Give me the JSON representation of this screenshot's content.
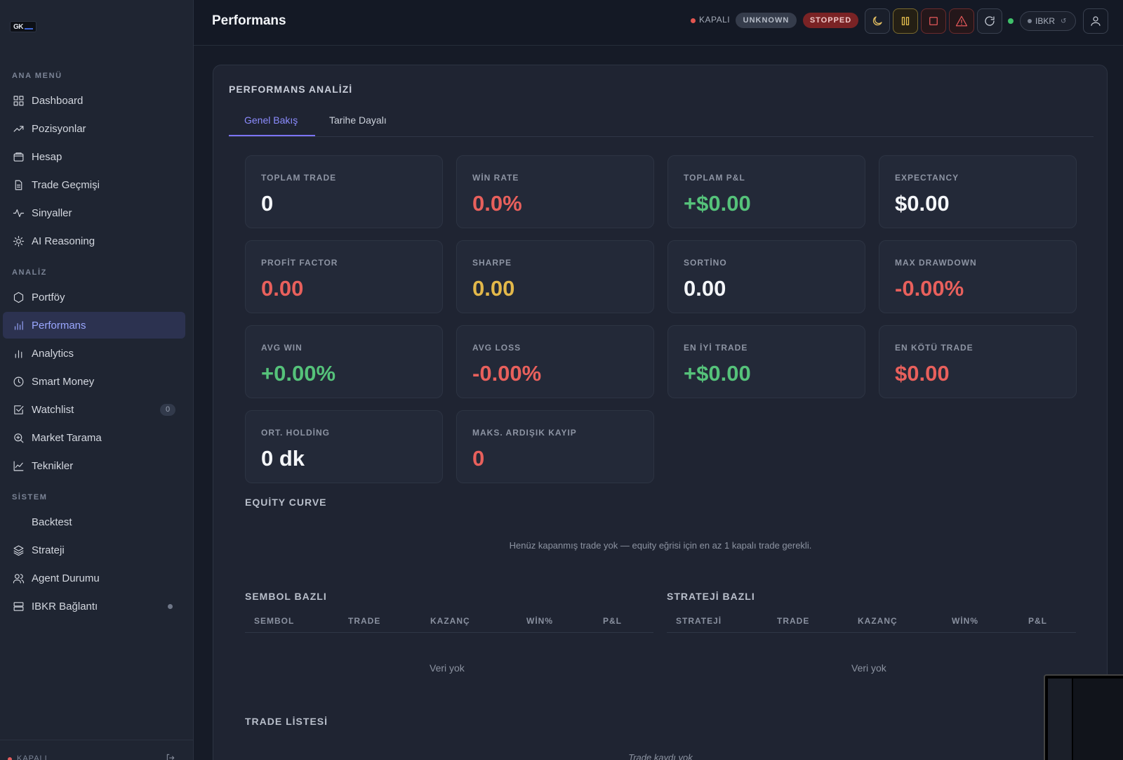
{
  "logo": {
    "text": "GK"
  },
  "sidebar": {
    "sections": {
      "main": "ANA MENÜ",
      "analysis": "ANALİZ",
      "system": "SİSTEM"
    },
    "items": [
      {
        "label": "Dashboard",
        "icon": "grid-icon"
      },
      {
        "label": "Pozisyonlar",
        "icon": "trending-up-icon"
      },
      {
        "label": "Hesap",
        "icon": "wallet-icon"
      },
      {
        "label": "Trade Geçmişi",
        "icon": "document-icon"
      },
      {
        "label": "Sinyaller",
        "icon": "activity-icon"
      },
      {
        "label": "AI Reasoning",
        "icon": "sun-icon"
      },
      {
        "label": "Portföy",
        "icon": "hexagon-icon"
      },
      {
        "label": "Performans",
        "icon": "bar-chart-icon",
        "active": true
      },
      {
        "label": "Analytics",
        "icon": "bar-chart-icon"
      },
      {
        "label": "Smart Money",
        "icon": "clock-icon"
      },
      {
        "label": "Watchlist",
        "icon": "check-square-icon",
        "count": "0"
      },
      {
        "label": "Market Tarama",
        "icon": "zoom-icon"
      },
      {
        "label": "Teknikler",
        "icon": "line-chart-icon"
      },
      {
        "label": "Backtest",
        "icon": ""
      },
      {
        "label": "Strateji",
        "icon": "layers-icon"
      },
      {
        "label": "Agent Durumu",
        "icon": "users-icon"
      },
      {
        "label": "IBKR Bağlantı",
        "icon": "server-icon"
      }
    ],
    "footer": {
      "status": "KAPALI"
    }
  },
  "header": {
    "title": "Performans",
    "connection": "KAPALI",
    "badge_unknown": "UNKNOWN",
    "badge_stopped": "STOPPED",
    "broker": "IBKR",
    "broker_refresh": "↺"
  },
  "panel": {
    "title": "PERFORMANS ANALİZİ",
    "tabs": [
      "Genel Bakış",
      "Tarihe Dayalı"
    ],
    "metrics": [
      {
        "label": "TOPLAM TRADE",
        "value": "0"
      },
      {
        "label": "WİN RATE",
        "value": "0.0%"
      },
      {
        "label": "TOPLAM P&L",
        "value": "+$0.00"
      },
      {
        "label": "EXPECTANCY",
        "value": "$0.00"
      },
      {
        "label": "PROFİT FACTOR",
        "value": "0.00"
      },
      {
        "label": "SHARPE",
        "value": "0.00"
      },
      {
        "label": "SORTİNO",
        "value": "0.00"
      },
      {
        "label": "MAX DRAWDOWN",
        "value": "-0.00%"
      },
      {
        "label": "AVG WIN",
        "value": "+0.00%"
      },
      {
        "label": "AVG LOSS",
        "value": "-0.00%"
      },
      {
        "label": "EN İYİ TRADE",
        "value": "+$0.00"
      },
      {
        "label": "EN KÖTÜ TRADE",
        "value": "$0.00"
      },
      {
        "label": "ORT. HOLDİNG",
        "value": "0 dk"
      },
      {
        "label": "MAKS. ARDIŞIK KAYIP",
        "value": "0"
      }
    ],
    "equity": {
      "title": "EQUİTY CURVE",
      "empty": "Henüz kapanmış trade yok — equity eğrisi için en az 1 kapalı trade gerekli."
    },
    "symbol_table": {
      "title": "SEMBOL BAZLI",
      "columns": [
        "SEMBOL",
        "TRADE",
        "KAZANÇ",
        "WİN%",
        "P&L"
      ],
      "empty": "Veri yok"
    },
    "strategy_table": {
      "title": "STRATEJİ BAZLI",
      "columns": [
        "STRATEJİ",
        "TRADE",
        "KAZANÇ",
        "WİN%",
        "P&L"
      ],
      "empty": "Veri yok"
    },
    "trade_list": {
      "title": "TRADE LİSTESİ",
      "empty": "Trade kaydı yok"
    }
  },
  "colors": {
    "accent": "#8c8cff",
    "positive": "#55c27a",
    "negative": "#e8605c",
    "warning": "#e3b84a"
  }
}
